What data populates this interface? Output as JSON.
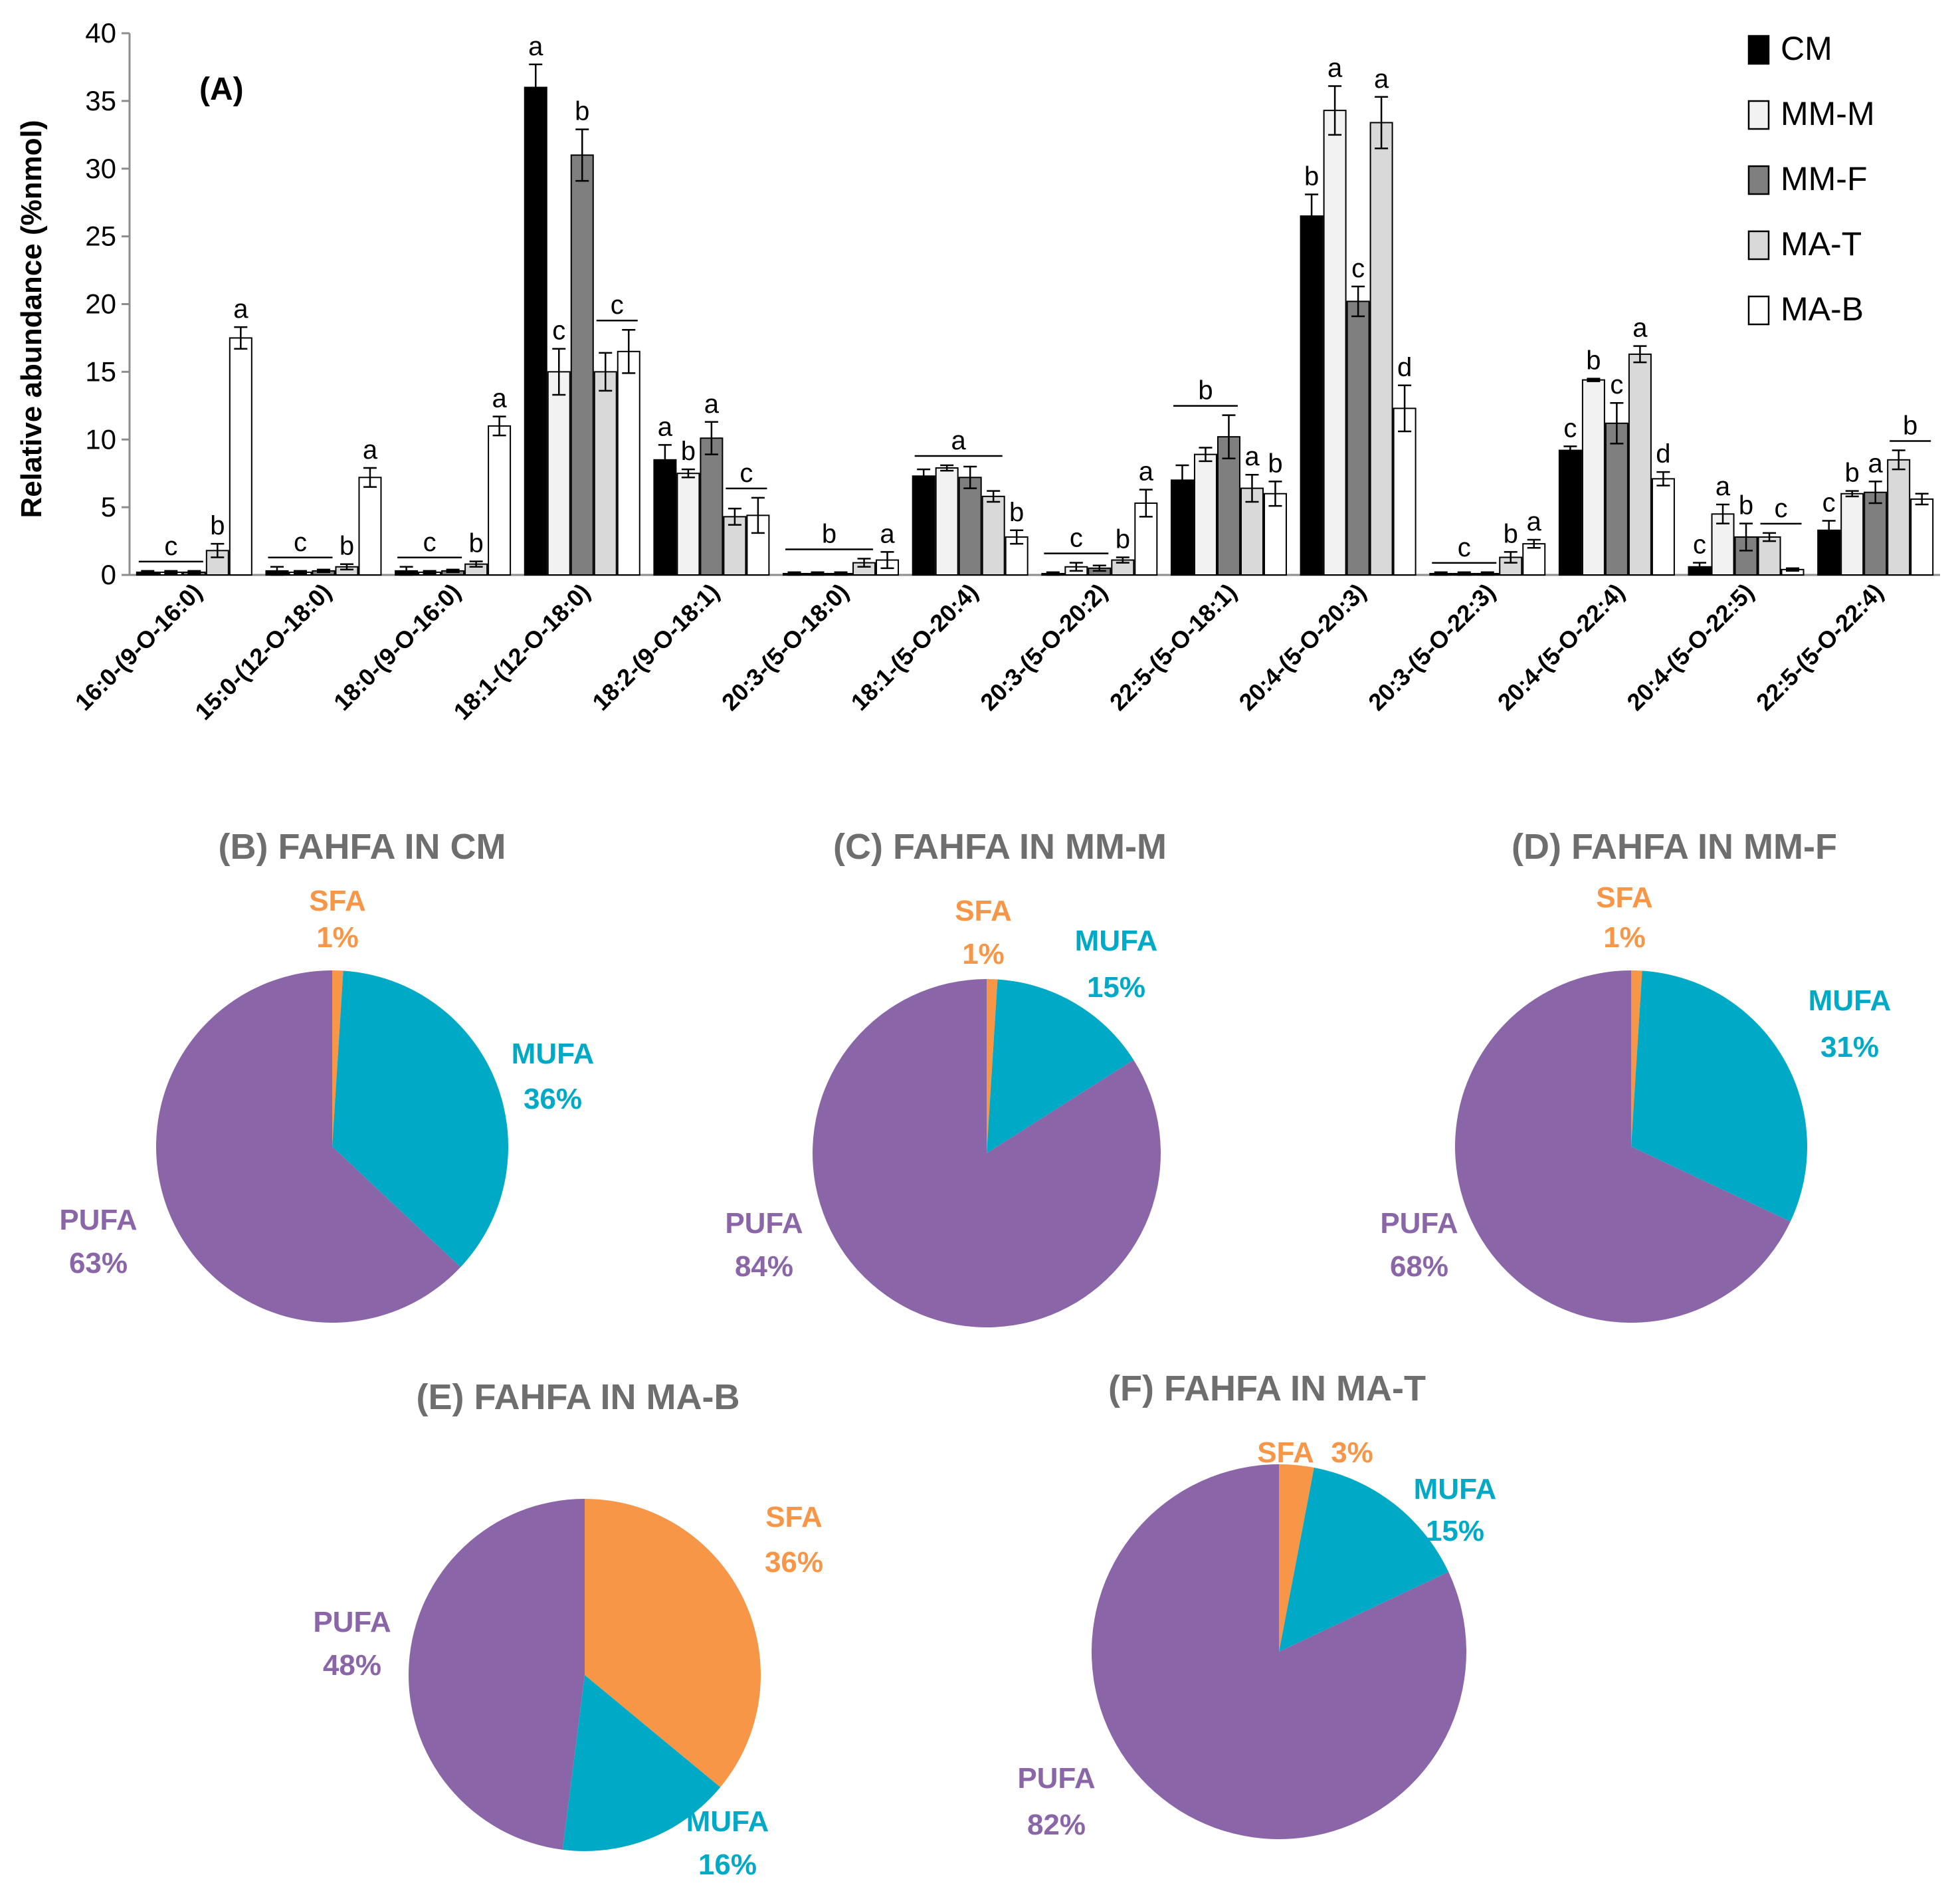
{
  "chart_data": [
    {
      "type": "bar",
      "panel": "(A)",
      "ylabel": "Relative abundance (%nmol)",
      "xlabel": "",
      "ylim": [
        0,
        40
      ],
      "yticks": [
        "0",
        "5",
        "10",
        "15",
        "20",
        "25",
        "30",
        "35",
        "40"
      ],
      "legend_position": "top-right",
      "categories": [
        "16:0-(9-O-16:0)",
        "15:0-(12-O-18:0)",
        "18:0-(9-O-16:0)",
        "18:1-(12-O-18:0)",
        "18:2-(9-O-18:1)",
        "20:3-(5-O-18:0)",
        "18:1-(5-O-20:4)",
        "20:3-(5-O-20:2)",
        "22:5-(5-O-18:1)",
        "20:4-(5-O-20:3)",
        "20:3-(5-O-22:3)",
        "20:4-(5-O-22:4)",
        "20:4-(5-O-22:5)",
        "22:5-(5-O-22:4)"
      ],
      "series": [
        {
          "name": "CM",
          "color": "#000000",
          "values": [
            0.2,
            0.3,
            0.3,
            36.0,
            8.5,
            0.1,
            7.3,
            0.1,
            7.0,
            26.5,
            0.1,
            9.2,
            0.6,
            3.3
          ],
          "errors": [
            0.1,
            0.3,
            0.3,
            1.7,
            1.1,
            0.1,
            0.5,
            0.1,
            1.1,
            1.6,
            0.1,
            0.3,
            0.3,
            0.7
          ]
        },
        {
          "name": "MM-M",
          "color": "#f2f2f2",
          "values": [
            0.2,
            0.2,
            0.2,
            15.0,
            7.5,
            0.1,
            7.9,
            0.6,
            8.9,
            34.3,
            0.1,
            14.4,
            4.5,
            6.0
          ],
          "errors": [
            0.1,
            0.1,
            0.1,
            1.7,
            0.3,
            0.1,
            0.2,
            0.3,
            0.5,
            1.8,
            0.1,
            0.1,
            0.7,
            0.2
          ]
        },
        {
          "name": "MM-F",
          "color": "#7f7f7f",
          "values": [
            0.2,
            0.3,
            0.3,
            31.0,
            10.1,
            0.1,
            7.2,
            0.5,
            10.2,
            20.2,
            0.1,
            11.2,
            2.8,
            6.1
          ],
          "errors": [
            0.1,
            0.1,
            0.1,
            1.9,
            1.2,
            0.1,
            0.8,
            0.2,
            1.6,
            1.1,
            0.1,
            1.5,
            1.0,
            0.8
          ]
        },
        {
          "name": "MA-T",
          "color": "#d9d9d9",
          "values": [
            1.8,
            0.6,
            0.8,
            15.0,
            4.3,
            0.9,
            5.8,
            1.1,
            6.4,
            33.4,
            1.3,
            16.3,
            2.8,
            8.5
          ],
          "errors": [
            0.5,
            0.2,
            0.2,
            1.4,
            0.6,
            0.3,
            0.4,
            0.2,
            1.0,
            1.9,
            0.4,
            0.6,
            0.3,
            0.7
          ]
        },
        {
          "name": "MA-B",
          "color": "#ffffff",
          "values": [
            17.5,
            7.2,
            11.0,
            16.5,
            4.4,
            1.1,
            2.8,
            5.3,
            6.0,
            12.3,
            2.3,
            7.1,
            0.4,
            5.6
          ],
          "errors": [
            0.8,
            0.7,
            0.7,
            1.6,
            1.3,
            0.6,
            0.5,
            1.0,
            0.9,
            1.7,
            0.3,
            0.5,
            0.1,
            0.4
          ]
        }
      ],
      "annotations": [
        {
          "category": 0,
          "items": [
            "c",
            "b",
            "a"
          ]
        },
        {
          "category": 1,
          "items": [
            "c",
            "b",
            "a"
          ]
        },
        {
          "category": 2,
          "items": [
            "c",
            "b",
            "a"
          ]
        },
        {
          "category": 3,
          "items": [
            "a",
            "c",
            "b",
            "c"
          ]
        },
        {
          "category": 4,
          "items": [
            "a",
            "b",
            "a",
            "c"
          ]
        },
        {
          "category": 5,
          "items": [
            "b",
            "a"
          ]
        },
        {
          "category": 6,
          "items": [
            "a",
            "b"
          ]
        },
        {
          "category": 7,
          "items": [
            "c",
            "b",
            "a"
          ]
        },
        {
          "category": 8,
          "items": [
            "b",
            "a",
            "b"
          ]
        },
        {
          "category": 9,
          "items": [
            "b",
            "a",
            "c",
            "a",
            "d"
          ]
        },
        {
          "category": 10,
          "items": [
            "c",
            "b",
            "a"
          ]
        },
        {
          "category": 11,
          "items": [
            "c",
            "b",
            "c",
            "a",
            "d"
          ]
        },
        {
          "category": 12,
          "items": [
            "c",
            "a",
            "b",
            "c"
          ]
        },
        {
          "category": 13,
          "items": [
            "c",
            "b",
            "a",
            "b"
          ]
        }
      ]
    },
    {
      "type": "pie",
      "title": "(B) FAHFA IN CM",
      "slices": [
        {
          "name": "SFA",
          "label": "SFA",
          "value_label": "1%",
          "value": 1,
          "color": "#f79646"
        },
        {
          "name": "MUFA",
          "label": "MUFA",
          "value_label": "36%",
          "value": 36,
          "color": "#00aac6"
        },
        {
          "name": "PUFA",
          "label": "PUFA",
          "value_label": "63%",
          "value": 63,
          "color": "#8a65a7"
        }
      ]
    },
    {
      "type": "pie",
      "title": "(C) FAHFA IN MM-M",
      "slices": [
        {
          "name": "SFA",
          "label": "SFA",
          "value_label": "1%",
          "value": 1,
          "color": "#f79646"
        },
        {
          "name": "MUFA",
          "label": "MUFA",
          "value_label": "15%",
          "value": 15,
          "color": "#00aac6"
        },
        {
          "name": "PUFA",
          "label": "PUFA",
          "value_label": "84%",
          "value": 84,
          "color": "#8a65a7"
        }
      ]
    },
    {
      "type": "pie",
      "title": "(D) FAHFA IN MM-F",
      "slices": [
        {
          "name": "SFA",
          "label": "SFA",
          "value_label": "1%",
          "value": 1,
          "color": "#f79646"
        },
        {
          "name": "MUFA",
          "label": "MUFA",
          "value_label": "31%",
          "value": 31,
          "color": "#00aac6"
        },
        {
          "name": "PUFA",
          "label": "PUFA",
          "value_label": "68%",
          "value": 68,
          "color": "#8a65a7"
        }
      ]
    },
    {
      "type": "pie",
      "title": "(E) FAHFA IN  MA-B",
      "slices": [
        {
          "name": "SFA",
          "label": "SFA",
          "value_label": "36%",
          "value": 36,
          "color": "#f79646"
        },
        {
          "name": "MUFA",
          "label": "MUFA",
          "value_label": "16%",
          "value": 16,
          "color": "#00aac6"
        },
        {
          "name": "PUFA",
          "label": "PUFA",
          "value_label": "48%",
          "value": 48,
          "color": "#8a65a7"
        }
      ]
    },
    {
      "type": "pie",
      "title": "(F) FAHFA IN MA-T",
      "slices": [
        {
          "name": "SFA",
          "label": "SFA",
          "value_label": "3%",
          "value": 3,
          "color": "#f79646"
        },
        {
          "name": "MUFA",
          "label": "MUFA",
          "value_label": "15%",
          "value": 15,
          "color": "#00aac6"
        },
        {
          "name": "PUFA",
          "label": "PUFA",
          "value_label": "82%",
          "value": 82,
          "color": "#8a65a7"
        }
      ]
    }
  ]
}
